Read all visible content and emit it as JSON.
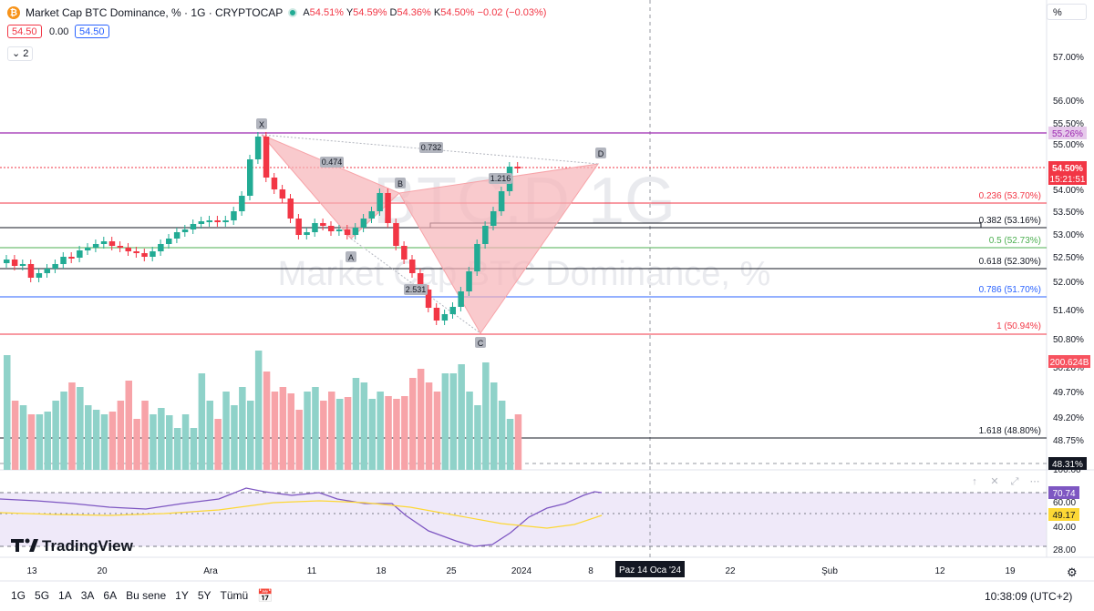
{
  "header": {
    "symbol_title": "Market Cap BTC Dominance, % · 1G · CRYPTOCAP",
    "ohlc": {
      "o_label": "A",
      "o": "54.51%",
      "h_label": "Y",
      "h": "54.59%",
      "l_label": "D",
      "l": "54.36%",
      "c_label": "K",
      "c": "54.50%",
      "change": "−0.02 (−0.03%)"
    },
    "sell_price": "54.50",
    "spread": "0.00",
    "buy_price": "54.50",
    "indicators_count": "2",
    "scale_mode": "%",
    "symbol_icon": "bitcoin-icon"
  },
  "watermark": {
    "line1": "BTC.D 1G",
    "line2": "Market Cap BTC Dominance, %"
  },
  "price_axis": {
    "ticks": [
      "57.00%",
      "56.00%",
      "55.50%",
      "55.00%",
      "54.00%",
      "53.50%",
      "53.00%",
      "52.50%",
      "52.00%",
      "51.40%",
      "50.80%",
      "50.20%",
      "49.70%",
      "49.20%",
      "48.75%"
    ],
    "current_price": "54.50%",
    "countdown": "15:21:51",
    "level_purple": "55.26%",
    "volume_label": "200.624B",
    "crosshair_price": "48.31%"
  },
  "fib": [
    {
      "label": "0.236 (53.70%)",
      "color": "#f23645"
    },
    {
      "label": "0.382 (53.16%)",
      "color": "#131722"
    },
    {
      "label": "0.5 (52.73%)",
      "color": "#4caf50"
    },
    {
      "label": "0.618 (52.30%)",
      "color": "#131722"
    },
    {
      "label": "0.786 (51.70%)",
      "color": "#2962ff"
    },
    {
      "label": "1 (50.94%)",
      "color": "#f23645"
    },
    {
      "label": "1.618 (48.80%)",
      "color": "#131722"
    }
  ],
  "pattern": {
    "points": [
      "X",
      "A",
      "B",
      "C",
      "D"
    ],
    "ratios": [
      "0.474",
      "0.732",
      "1.216",
      "2.531"
    ]
  },
  "rsi": {
    "ticks": [
      "100.00",
      "60.00",
      "40.00",
      "28.00"
    ],
    "value": "70.74",
    "ma": "49.17"
  },
  "time_axis": {
    "labels": [
      "13",
      "20",
      "Ara",
      "11",
      "18",
      "25",
      "2024",
      "8",
      "22",
      "Şub",
      "12",
      "19"
    ],
    "crosshair": "Paz 14 Oca '24"
  },
  "branding": "TradingView",
  "toolbar": {
    "ranges": [
      "1G",
      "5G",
      "1A",
      "3A",
      "6A",
      "Bu sene",
      "1Y",
      "5Y",
      "Tümü"
    ]
  },
  "clock": "10:38:09 (UTC+2)",
  "colors": {
    "up": "#22ab94",
    "down": "#f23645",
    "vol_up": "#8fd2c9",
    "vol_down": "#f7a3a8",
    "pattern_fill": "#f7b3b8",
    "rsi_line": "#7e57c2",
    "rsi_ma": "#fdd835",
    "purple_level": "#9c27b0"
  }
}
